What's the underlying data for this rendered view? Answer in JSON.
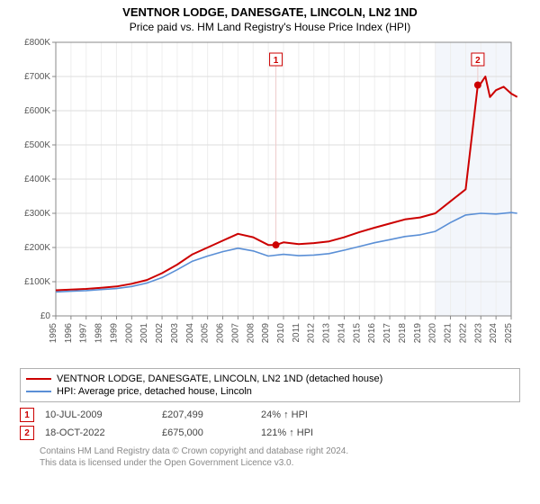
{
  "title": "VENTNOR LODGE, DANESGATE, LINCOLN, LN2 1ND",
  "subtitle": "Price paid vs. HM Land Registry's House Price Index (HPI)",
  "chart": {
    "type": "line",
    "background_color": "#ffffff",
    "axis_color": "#888888",
    "grid_color": "#dddddd",
    "minor_grid_color": "#eeeeee",
    "y": {
      "min": 0,
      "max": 800000,
      "step": 100000,
      "labels": [
        "£0",
        "£100K",
        "£200K",
        "£300K",
        "£400K",
        "£500K",
        "£600K",
        "£700K",
        "£800K"
      ],
      "label_fontsize": 10,
      "label_color": "#555555"
    },
    "x": {
      "min": 1995,
      "max": 2025,
      "labels": [
        "1995",
        "1996",
        "1997",
        "1998",
        "1999",
        "2000",
        "2001",
        "2002",
        "2003",
        "2004",
        "2005",
        "2006",
        "2007",
        "2008",
        "2009",
        "2010",
        "2011",
        "2012",
        "2013",
        "2014",
        "2015",
        "2016",
        "2017",
        "2018",
        "2019",
        "2020",
        "2021",
        "2022",
        "2023",
        "2024",
        "2025"
      ],
      "label_fontsize": 10,
      "label_color": "#555555",
      "vertical_labels": true,
      "shaded_start": 2020,
      "shaded_end": 2025.7,
      "shaded_color": "#f3f6fb"
    },
    "series": [
      {
        "name": "VENTNOR LODGE, DANESGATE, LINCOLN, LN2 1ND (detached house)",
        "color": "#cc0000",
        "line_width": 2,
        "points": [
          [
            1995,
            75000
          ],
          [
            1996,
            77000
          ],
          [
            1997,
            79000
          ],
          [
            1998,
            82000
          ],
          [
            1999,
            86000
          ],
          [
            2000,
            94000
          ],
          [
            2001,
            105000
          ],
          [
            2002,
            125000
          ],
          [
            2003,
            150000
          ],
          [
            2004,
            180000
          ],
          [
            2005,
            200000
          ],
          [
            2006,
            220000
          ],
          [
            2007,
            240000
          ],
          [
            2008,
            230000
          ],
          [
            2009,
            207499
          ],
          [
            2009.5,
            207499
          ],
          [
            2010,
            215000
          ],
          [
            2011,
            210000
          ],
          [
            2012,
            213000
          ],
          [
            2013,
            218000
          ],
          [
            2014,
            230000
          ],
          [
            2015,
            245000
          ],
          [
            2016,
            258000
          ],
          [
            2017,
            270000
          ],
          [
            2018,
            282000
          ],
          [
            2019,
            288000
          ],
          [
            2020,
            300000
          ],
          [
            2021,
            335000
          ],
          [
            2022,
            370000
          ],
          [
            2022.8,
            675000
          ],
          [
            2023,
            680000
          ],
          [
            2023.3,
            700000
          ],
          [
            2023.6,
            640000
          ],
          [
            2024,
            660000
          ],
          [
            2024.5,
            670000
          ],
          [
            2025,
            650000
          ],
          [
            2025.4,
            640000
          ]
        ]
      },
      {
        "name": "HPI: Average price, detached house, Lincoln",
        "color": "#5a8fd6",
        "line_width": 1.6,
        "points": [
          [
            1995,
            70000
          ],
          [
            1996,
            72000
          ],
          [
            1997,
            74000
          ],
          [
            1998,
            77000
          ],
          [
            1999,
            80000
          ],
          [
            2000,
            86000
          ],
          [
            2001,
            96000
          ],
          [
            2002,
            112000
          ],
          [
            2003,
            135000
          ],
          [
            2004,
            160000
          ],
          [
            2005,
            175000
          ],
          [
            2006,
            188000
          ],
          [
            2007,
            198000
          ],
          [
            2008,
            190000
          ],
          [
            2009,
            175000
          ],
          [
            2010,
            180000
          ],
          [
            2011,
            176000
          ],
          [
            2012,
            178000
          ],
          [
            2013,
            182000
          ],
          [
            2014,
            192000
          ],
          [
            2015,
            203000
          ],
          [
            2016,
            214000
          ],
          [
            2017,
            223000
          ],
          [
            2018,
            232000
          ],
          [
            2019,
            237000
          ],
          [
            2020,
            247000
          ],
          [
            2021,
            273000
          ],
          [
            2022,
            295000
          ],
          [
            2023,
            300000
          ],
          [
            2024,
            298000
          ],
          [
            2025,
            302000
          ],
          [
            2025.4,
            300000
          ]
        ]
      }
    ],
    "markers": [
      {
        "id": "1",
        "x": 2009.5,
        "y": 207499,
        "box_top_y": 750000,
        "border_color": "#cc0000",
        "text_color": "#cc0000",
        "line_color": "#eecccc"
      },
      {
        "id": "2",
        "x": 2022.8,
        "y": 675000,
        "box_top_y": 750000,
        "border_color": "#cc0000",
        "text_color": "#cc0000",
        "line_color": "#eecccc"
      }
    ]
  },
  "legend": {
    "series1": "VENTNOR LODGE, DANESGATE, LINCOLN, LN2 1ND (detached house)",
    "series2": "HPI: Average price, detached house, Lincoln"
  },
  "transactions": [
    {
      "id": "1",
      "date": "10-JUL-2009",
      "price": "£207,499",
      "hpi_delta": "24% ↑ HPI",
      "border_color": "#cc0000",
      "text_color": "#cc0000"
    },
    {
      "id": "2",
      "date": "18-OCT-2022",
      "price": "£675,000",
      "hpi_delta": "121% ↑ HPI",
      "border_color": "#cc0000",
      "text_color": "#cc0000"
    }
  ],
  "footnote": {
    "line1": "Contains HM Land Registry data © Crown copyright and database right 2024.",
    "line2": "This data is licensed under the Open Government Licence v3.0."
  }
}
